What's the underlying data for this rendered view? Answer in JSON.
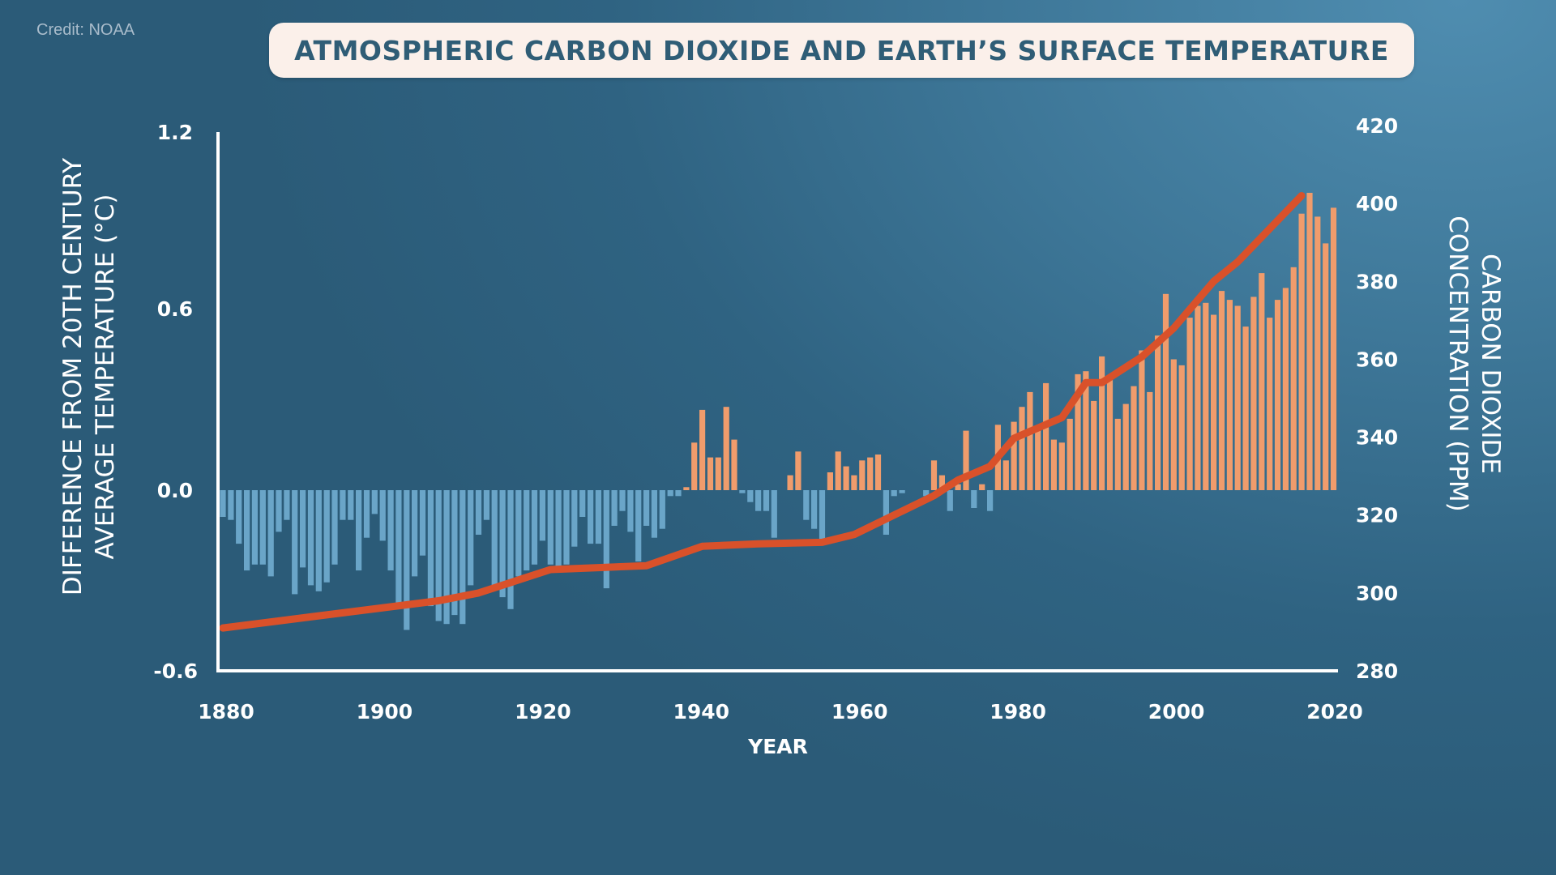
{
  "credit": "Credit: NOAA",
  "chart_data": {
    "type": "bar+line",
    "title": "ATMOSPHERIC CARBON DIOXIDE AND EARTH’S SURFACE TEMPERATURE",
    "xlabel": "YEAR",
    "ylabel_left": [
      "DIFFERENCE FROM 20TH CENTURY",
      "AVERAGE TEMPERATURE (°C)"
    ],
    "ylabel_right": [
      "CARBON DIOXIDE",
      "CONCENTRATION (PPM)"
    ],
    "x_ticks": [
      "1880",
      "1900",
      "1920",
      "1940",
      "1960",
      "1980",
      "2000",
      "2020"
    ],
    "xlim": [
      1880,
      2020
    ],
    "y_left_ticks": [
      "1.2",
      "0.6",
      "0.0",
      "-0.6"
    ],
    "ylim_left": [
      -0.6,
      1.2
    ],
    "y_right_ticks": [
      "420",
      "400",
      "380",
      "360",
      "340",
      "320",
      "300",
      "280"
    ],
    "ylim_right": [
      280,
      420
    ],
    "grid": false,
    "colors": {
      "positive": "#f09c6c",
      "negative": "#6aa5c8",
      "co2_line": "#d9512a"
    },
    "temperature_anomaly": {
      "start_year": 1880,
      "values": [
        -0.09,
        -0.1,
        -0.18,
        -0.27,
        -0.25,
        -0.25,
        -0.29,
        -0.14,
        -0.1,
        -0.35,
        -0.26,
        -0.32,
        -0.34,
        -0.31,
        -0.25,
        -0.1,
        -0.1,
        -0.27,
        -0.16,
        -0.08,
        -0.17,
        -0.27,
        -0.38,
        -0.47,
        -0.29,
        -0.22,
        -0.39,
        -0.44,
        -0.45,
        -0.42,
        -0.45,
        -0.32,
        -0.15,
        -0.1,
        -0.33,
        -0.36,
        -0.4,
        -0.29,
        -0.27,
        -0.25,
        -0.17,
        -0.25,
        -0.26,
        -0.25,
        -0.19,
        -0.09,
        -0.18,
        -0.18,
        -0.33,
        -0.12,
        -0.07,
        -0.14,
        -0.24,
        -0.12,
        -0.16,
        -0.13,
        -0.02,
        -0.02,
        0.01,
        0.16,
        0.27,
        0.11,
        0.11,
        0.28,
        0.17,
        -0.01,
        -0.04,
        -0.07,
        -0.07,
        -0.16,
        0.0,
        0.05,
        0.13,
        -0.1,
        -0.13,
        -0.18,
        0.06,
        0.13,
        0.08,
        0.05,
        0.1,
        0.11,
        0.12,
        -0.15,
        -0.02,
        -0.01,
        0.0,
        0.0,
        -0.02,
        0.1,
        0.05,
        -0.07,
        0.02,
        0.2,
        -0.06,
        0.02,
        -0.07,
        0.22,
        0.1,
        0.23,
        0.28,
        0.33,
        0.2,
        0.36,
        0.17,
        0.16,
        0.24,
        0.39,
        0.4,
        0.3,
        0.45,
        0.37,
        0.24,
        0.29,
        0.35,
        0.47,
        0.33,
        0.52,
        0.66,
        0.44,
        0.42,
        0.58,
        0.62,
        0.63,
        0.59,
        0.67,
        0.64,
        0.62,
        0.55,
        0.65,
        0.73,
        0.58,
        0.64,
        0.68,
        0.75,
        0.93,
        1.0,
        0.92,
        0.83,
        0.95
      ]
    },
    "co2_ppm": {
      "x": [
        1880,
        1907,
        1912,
        1921,
        1927,
        1933,
        1940,
        1947,
        1955,
        1959,
        1965,
        1969,
        1972,
        1976,
        1979,
        1985,
        1988,
        1990,
        1995,
        1999,
        2004,
        2007,
        2015
      ],
      "y": [
        291,
        298,
        300,
        306,
        306.5,
        307,
        312,
        312.6,
        313,
        315,
        321,
        325,
        329,
        332.5,
        339.7,
        345,
        354,
        354,
        360.6,
        368,
        380,
        385,
        402
      ]
    }
  }
}
